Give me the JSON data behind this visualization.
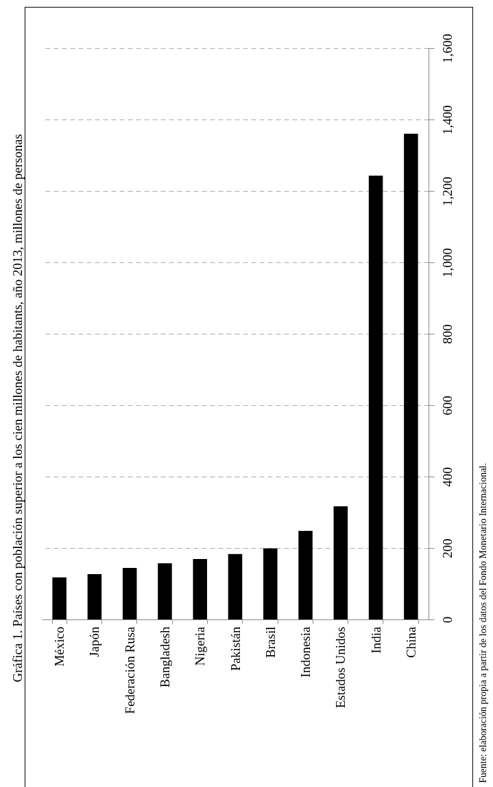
{
  "chart_data": {
    "type": "bar",
    "title": "Gráfica 1. Países con población superior a los cien millones de habitants, año 2013, millones de personas",
    "categories": [
      "México",
      "Japón",
      "Federación Rusa",
      "Bangladesh",
      "Nigeria",
      "Pakistán",
      "Brasil",
      "Indonesia",
      "Estados Unidos",
      "India",
      "China"
    ],
    "values": [
      118,
      127,
      144,
      157,
      169,
      183,
      199,
      248,
      317,
      1243,
      1360
    ],
    "color": "#000000",
    "ylim": [
      0,
      1600
    ],
    "yticks": [
      0,
      200,
      400,
      600,
      800,
      {
        "value": 1000,
        "label": "1,000"
      },
      {
        "value": 1200,
        "label": "1,200"
      },
      {
        "value": 1400,
        "label": "1,400"
      },
      {
        "value": 1600,
        "label": "1,600"
      }
    ],
    "grid": "y",
    "annotations": [
      "Fuente: elaboración propia a partir de los datos del Fondo Monetario Internacional."
    ]
  }
}
